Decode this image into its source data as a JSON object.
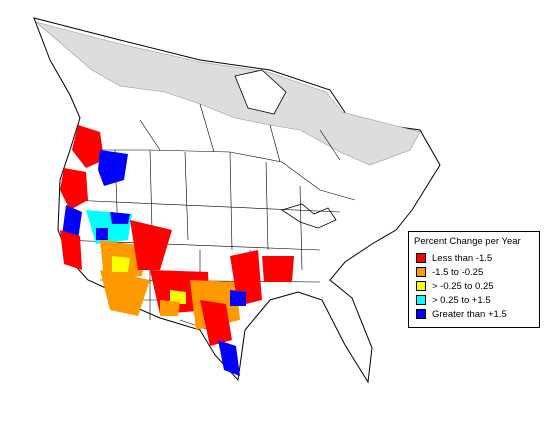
{
  "legend": {
    "title": "Percent Change per Year",
    "items": [
      {
        "label": "Less than -1.5",
        "color": "#ff0000"
      },
      {
        "label": "-1.5 to -0.25",
        "color": "#ff9900"
      },
      {
        "label": "> -0.25 to 0.25",
        "color": "#ffff00"
      },
      {
        "label": "> 0.25 to +1.5",
        "color": "#00ffff"
      },
      {
        "label": "Greater than +1.5",
        "color": "#0000ff"
      }
    ]
  },
  "colors": {
    "no_data_region": "#dddddd",
    "land": "#ffffff",
    "borders": "#000000"
  }
}
